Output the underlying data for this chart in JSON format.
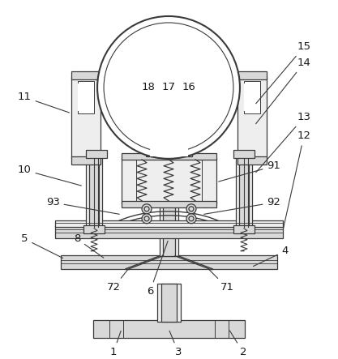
{
  "background_color": "#ffffff",
  "line_color": "#3a3a3a",
  "fill_gray": "#d8d8d8",
  "fill_light": "#eeeeee",
  "fill_white": "#ffffff"
}
